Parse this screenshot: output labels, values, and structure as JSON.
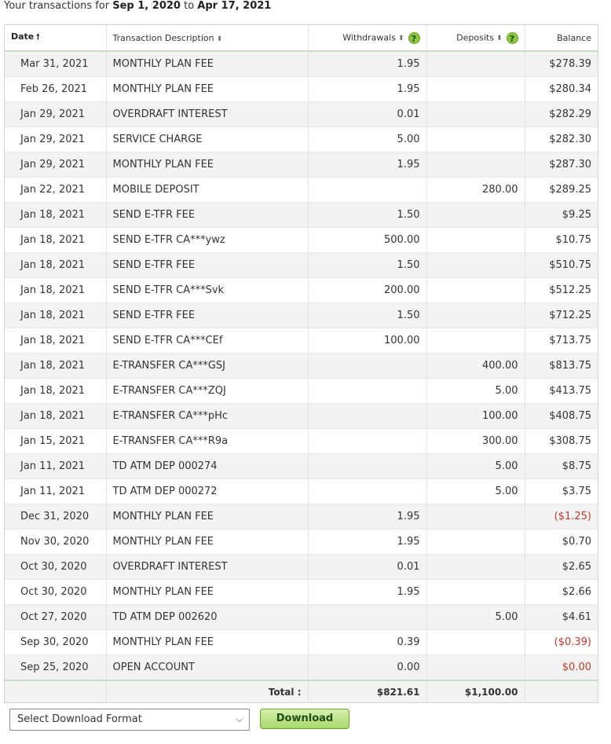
{
  "header": {
    "prefix": "Your transactions for",
    "from": "Sep 1, 2020",
    "to_word": "to",
    "to": "Apr 17, 2021"
  },
  "columns": {
    "date": "Date",
    "description": "Transaction Description",
    "withdrawals": "Withdrawals",
    "deposits": "Deposits",
    "balance": "Balance"
  },
  "rows": [
    {
      "date": "Mar 31, 2021",
      "desc": "MONTHLY PLAN FEE",
      "withdrawal": "1.95",
      "deposit": "",
      "balance": "$278.39"
    },
    {
      "date": "Feb 26, 2021",
      "desc": "MONTHLY PLAN FEE",
      "withdrawal": "1.95",
      "deposit": "",
      "balance": "$280.34"
    },
    {
      "date": "Jan 29, 2021",
      "desc": "OVERDRAFT INTEREST",
      "withdrawal": "0.01",
      "deposit": "",
      "balance": "$282.29"
    },
    {
      "date": "Jan 29, 2021",
      "desc": "SERVICE CHARGE",
      "withdrawal": "5.00",
      "deposit": "",
      "balance": "$282.30"
    },
    {
      "date": "Jan 29, 2021",
      "desc": "MONTHLY PLAN FEE",
      "withdrawal": "1.95",
      "deposit": "",
      "balance": "$287.30"
    },
    {
      "date": "Jan 22, 2021",
      "desc": "MOBILE DEPOSIT",
      "withdrawal": "",
      "deposit": "280.00",
      "balance": "$289.25"
    },
    {
      "date": "Jan 18, 2021",
      "desc": "SEND E-TFR FEE",
      "withdrawal": "1.50",
      "deposit": "",
      "balance": "$9.25"
    },
    {
      "date": "Jan 18, 2021",
      "desc": "SEND E-TFR CA***ywz",
      "withdrawal": "500.00",
      "deposit": "",
      "balance": "$10.75"
    },
    {
      "date": "Jan 18, 2021",
      "desc": "SEND E-TFR FEE",
      "withdrawal": "1.50",
      "deposit": "",
      "balance": "$510.75"
    },
    {
      "date": "Jan 18, 2021",
      "desc": "SEND E-TFR CA***Svk",
      "withdrawal": "200.00",
      "deposit": "",
      "balance": "$512.25"
    },
    {
      "date": "Jan 18, 2021",
      "desc": "SEND E-TFR FEE",
      "withdrawal": "1.50",
      "deposit": "",
      "balance": "$712.25"
    },
    {
      "date": "Jan 18, 2021",
      "desc": "SEND E-TFR CA***CEf",
      "withdrawal": "100.00",
      "deposit": "",
      "balance": "$713.75"
    },
    {
      "date": "Jan 18, 2021",
      "desc": "E-TRANSFER CA***GSJ",
      "withdrawal": "",
      "deposit": "400.00",
      "balance": "$813.75"
    },
    {
      "date": "Jan 18, 2021",
      "desc": "E-TRANSFER CA***ZQJ",
      "withdrawal": "",
      "deposit": "5.00",
      "balance": "$413.75"
    },
    {
      "date": "Jan 18, 2021",
      "desc": "E-TRANSFER CA***pHc",
      "withdrawal": "",
      "deposit": "100.00",
      "balance": "$408.75"
    },
    {
      "date": "Jan 15, 2021",
      "desc": "E-TRANSFER CA***R9a",
      "withdrawal": "",
      "deposit": "300.00",
      "balance": "$308.75"
    },
    {
      "date": "Jan 11, 2021",
      "desc": "TD ATM DEP 000274",
      "withdrawal": "",
      "deposit": "5.00",
      "balance": "$8.75"
    },
    {
      "date": "Jan 11, 2021",
      "desc": "TD ATM DEP 000272",
      "withdrawal": "",
      "deposit": "5.00",
      "balance": "$3.75"
    },
    {
      "date": "Dec 31, 2020",
      "desc": "MONTHLY PLAN FEE",
      "withdrawal": "1.95",
      "deposit": "",
      "balance": "($1.25)",
      "negative": true
    },
    {
      "date": "Nov 30, 2020",
      "desc": "MONTHLY PLAN FEE",
      "withdrawal": "1.95",
      "deposit": "",
      "balance": "$0.70"
    },
    {
      "date": "Oct 30, 2020",
      "desc": "OVERDRAFT INTEREST",
      "withdrawal": "0.01",
      "deposit": "",
      "balance": "$2.65"
    },
    {
      "date": "Oct 30, 2020",
      "desc": "MONTHLY PLAN FEE",
      "withdrawal": "1.95",
      "deposit": "",
      "balance": "$2.66"
    },
    {
      "date": "Oct 27, 2020",
      "desc": "TD ATM DEP 002620",
      "withdrawal": "",
      "deposit": "5.00",
      "balance": "$4.61"
    },
    {
      "date": "Sep 30, 2020",
      "desc": "MONTHLY PLAN FEE",
      "withdrawal": "0.39",
      "deposit": "",
      "balance": "($0.39)",
      "negative": true
    },
    {
      "date": "Sep 25, 2020",
      "desc": "OPEN ACCOUNT",
      "withdrawal": "0.00",
      "deposit": "",
      "balance": "$0.00",
      "negative": true
    }
  ],
  "totals": {
    "label": "Total :",
    "withdrawals": "$821.61",
    "deposits": "$1,100.00"
  },
  "footer": {
    "select_value": "Select Download Format",
    "download_label": "Download"
  },
  "colors": {
    "negative": "#c0392b",
    "accent_green": "#8cc63f"
  }
}
